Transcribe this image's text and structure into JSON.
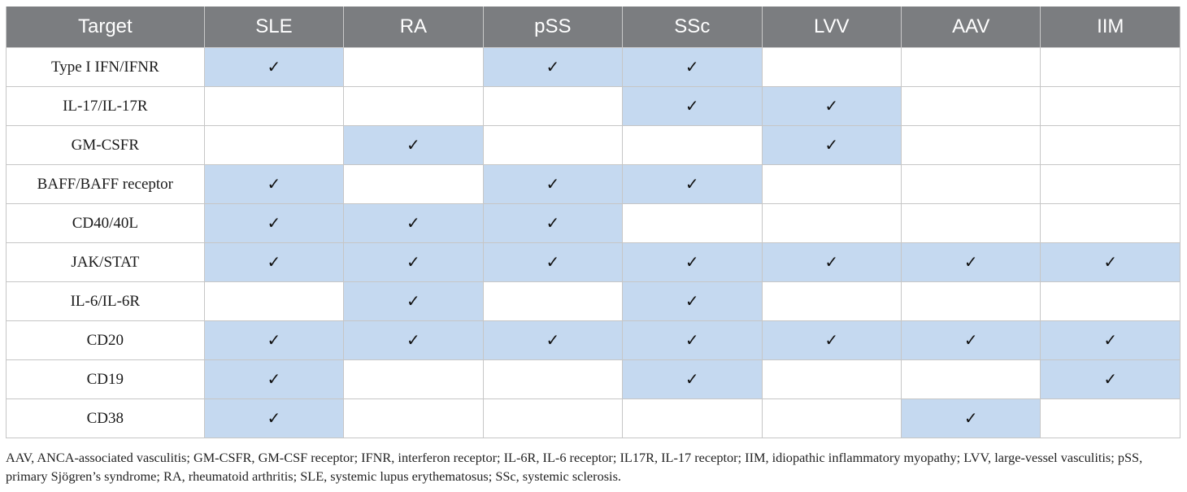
{
  "table": {
    "headers": [
      "Target",
      "SLE",
      "RA",
      "pSS",
      "SSc",
      "LVV",
      "AAV",
      "IIM"
    ],
    "check_mark": "✓",
    "colors": {
      "header_bg": "#7b7d80",
      "checked_bg": "#c5d9f0",
      "header_text": "#ffffff"
    },
    "rows": [
      {
        "label": "Type I IFN/IFNR",
        "checks": [
          true,
          false,
          true,
          true,
          false,
          false,
          false
        ]
      },
      {
        "label": "IL-17/IL-17R",
        "checks": [
          false,
          false,
          false,
          true,
          true,
          false,
          false
        ]
      },
      {
        "label": "GM-CSFR",
        "checks": [
          false,
          true,
          false,
          false,
          true,
          false,
          false
        ]
      },
      {
        "label": "BAFF/BAFF receptor",
        "checks": [
          true,
          false,
          true,
          true,
          false,
          false,
          false
        ]
      },
      {
        "label": "CD40/40L",
        "checks": [
          true,
          true,
          true,
          false,
          false,
          false,
          false
        ]
      },
      {
        "label": "JAK/STAT",
        "checks": [
          true,
          true,
          true,
          true,
          true,
          true,
          true
        ]
      },
      {
        "label": "IL-6/IL-6R",
        "checks": [
          false,
          true,
          false,
          true,
          false,
          false,
          false
        ]
      },
      {
        "label": "CD20",
        "checks": [
          true,
          true,
          true,
          true,
          true,
          true,
          true
        ]
      },
      {
        "label": "CD19",
        "checks": [
          true,
          false,
          false,
          true,
          false,
          false,
          true
        ]
      },
      {
        "label": "CD38",
        "checks": [
          true,
          false,
          false,
          false,
          false,
          true,
          false
        ]
      }
    ]
  },
  "footnote": "AAV, ANCA-associated vasculitis; GM-CSFR, GM-CSF receptor; IFNR, interferon receptor; IL-6R, IL-6 receptor; IL17R, IL-17 receptor; IIM, idiopathic inflammatory myopathy; LVV, large-vessel vasculitis; pSS, primary Sjögren’s syndrome; RA, rheumatoid arthritis; SLE, systemic lupus erythematosus; SSc, systemic sclerosis."
}
